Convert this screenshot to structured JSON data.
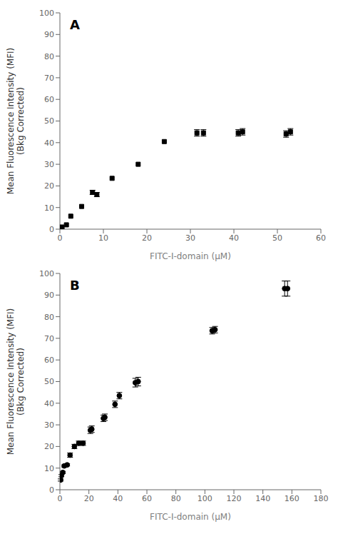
{
  "chart_data": [
    {
      "type": "scatter",
      "annotation": "A",
      "x": [
        0.5,
        1.5,
        2.5,
        5.0,
        7.5,
        8.5,
        12.0,
        18.0,
        24.0,
        31.5,
        33.0,
        41.0,
        42.0,
        52.0,
        53.0
      ],
      "values": [
        1.0,
        2.0,
        6.0,
        10.5,
        17.0,
        16.0,
        23.5,
        30.0,
        40.5,
        44.5,
        44.5,
        44.5,
        45.0,
        44.0,
        45.0
      ],
      "yerr": [
        0.0,
        0.0,
        0.0,
        0.0,
        1.0,
        1.0,
        0.0,
        0.0,
        0.0,
        1.5,
        1.5,
        1.5,
        1.5,
        1.5,
        1.5
      ],
      "xlim": [
        0,
        60
      ],
      "ylim": [
        0,
        100
      ],
      "xticks": [
        0,
        10,
        20,
        30,
        40,
        50,
        60
      ],
      "yticks": [
        0,
        10,
        20,
        30,
        40,
        50,
        60,
        70,
        80,
        90,
        100
      ],
      "xlabel": "FITC-I-domain (μM)",
      "ylabel": "Mean Fluorescence Intensity (MFI)\n(Bkg Corrected)",
      "marker": "square",
      "color": "#000000",
      "grid": false
    },
    {
      "type": "scatter",
      "annotation": "B",
      "x": [
        0.5,
        1.0,
        2.0,
        3.0,
        5.0,
        7.0,
        10.0,
        13.0,
        16.0,
        21.0,
        22.0,
        30.0,
        31.0,
        38.0,
        41.0,
        52.0,
        54.0,
        105.0,
        107.0,
        155.0,
        157.0
      ],
      "values": [
        4.5,
        6.5,
        8.0,
        11.0,
        11.5,
        16.0,
        20.0,
        21.5,
        21.5,
        27.5,
        28.0,
        33.0,
        33.5,
        39.5,
        43.5,
        49.5,
        50.0,
        73.5,
        74.0,
        93.0,
        93.0
      ],
      "yerr": [
        0.5,
        0.5,
        0.5,
        0.5,
        0.5,
        1.0,
        1.0,
        1.0,
        1.0,
        1.5,
        1.5,
        1.5,
        1.5,
        1.5,
        1.5,
        2.0,
        2.0,
        1.5,
        1.5,
        3.5,
        3.5
      ],
      "xlim": [
        0,
        180
      ],
      "ylim": [
        0,
        100
      ],
      "xticks": [
        0,
        20,
        40,
        60,
        80,
        100,
        120,
        140,
        160,
        180
      ],
      "yticks": [
        0,
        10,
        20,
        30,
        40,
        50,
        60,
        70,
        80,
        90,
        100
      ],
      "xlabel": "FITC-I-domain (μM)",
      "ylabel": "Mean Fluorescence Intensity (MFI)\n(Bkg Corrected)",
      "marker": "circle",
      "color": "#000000",
      "grid": false
    }
  ]
}
